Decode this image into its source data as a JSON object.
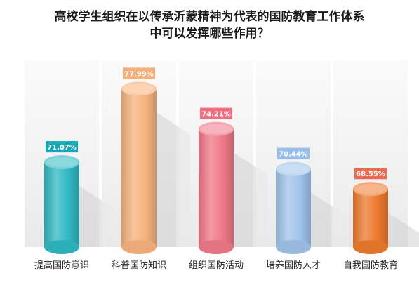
{
  "chart_data": {
    "type": "bar",
    "title_lines": [
      "高校学生组织在以传承沂蒙精神为代表的国防教育工作体系",
      "中可以发挥哪些作用？"
    ],
    "categories": [
      "提高国防意识",
      "科普国防知识",
      "组织国防活动",
      "培养国防人才",
      "自我国防教育"
    ],
    "values": [
      71.07,
      77.99,
      74.21,
      70.44,
      68.55
    ],
    "value_labels": [
      "71.07%",
      "77.99%",
      "74.21%",
      "70.44%",
      "68.55%"
    ],
    "unit": "%",
    "grid": false,
    "colors": {
      "bars": [
        "#2fb8c3",
        "#f6b27c",
        "#f07887",
        "#9fc3ea",
        "#ec7a2d"
      ],
      "label_bg": [
        "#16a8b4",
        "#f4b07a",
        "#ee6f80",
        "#99bde9",
        "#e86b54"
      ]
    }
  }
}
